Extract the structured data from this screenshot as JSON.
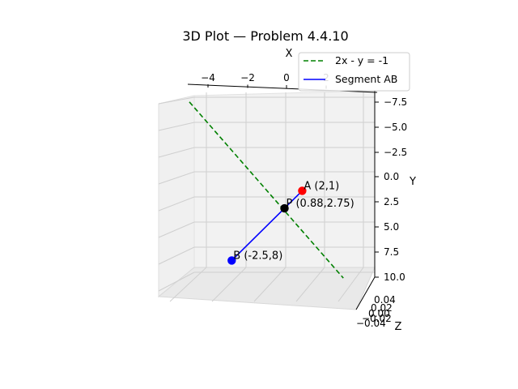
{
  "chart_data": {
    "type": "line",
    "projection": "3d",
    "title": "3D Plot — Problem 4.4.10",
    "xlabel": "X",
    "ylabel": "Y",
    "zlabel": "Z",
    "x_ticks": [
      "−4",
      "−2",
      "0",
      "2"
    ],
    "y_ticks": [
      "−7.5",
      "−5.0",
      "−2.5",
      "0.0",
      "2.5",
      "5.0",
      "7.5",
      "10.0"
    ],
    "z_ticks": [
      "0.04",
      "0.02",
      "0.00",
      "−0.02",
      "−0.04"
    ],
    "series": [
      {
        "name": "2x - y = -1",
        "style": "dashed",
        "color": "#008000",
        "x": [
          -4.8,
          4.5
        ],
        "y": [
          -8.6,
          10.0
        ],
        "z": [
          0,
          0
        ]
      },
      {
        "name": "Segment AB",
        "style": "solid",
        "color": "#0000ff",
        "x": [
          2,
          -2.5
        ],
        "y": [
          1,
          8
        ],
        "z": [
          0,
          0
        ]
      }
    ],
    "points": [
      {
        "label": "A (2,1)",
        "x": 2,
        "y": 1,
        "z": 0,
        "color": "#ff0000"
      },
      {
        "label": "P (0.88,2.75)",
        "x": 0.88,
        "y": 2.75,
        "z": 0,
        "color": "#000000"
      },
      {
        "label": "B (-2.5,8)",
        "x": -2.5,
        "y": 8,
        "z": 0,
        "color": "#0000ff"
      }
    ],
    "legend": {
      "placement": "top-right"
    },
    "grid": true
  }
}
